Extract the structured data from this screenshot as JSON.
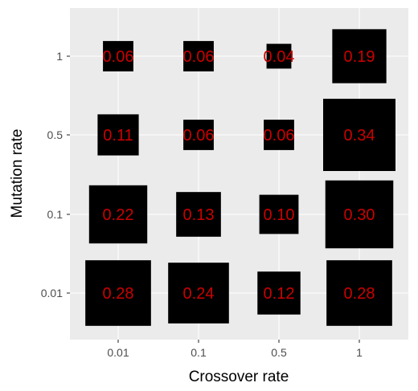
{
  "chart_data": {
    "type": "heatmap",
    "title": "",
    "xlabel": "Crossover rate",
    "ylabel": "Mutation rate",
    "x_categories": [
      "0.01",
      "0.1",
      "0.5",
      "1"
    ],
    "y_categories": [
      "0.01",
      "0.1",
      "0.5",
      "1"
    ],
    "grid": true,
    "legend": "none",
    "cells": [
      {
        "x": "0.01",
        "y": "1",
        "value": 0.06,
        "label": "0.06"
      },
      {
        "x": "0.1",
        "y": "1",
        "value": 0.06,
        "label": "0.06"
      },
      {
        "x": "0.5",
        "y": "1",
        "value": 0.04,
        "label": "0.04"
      },
      {
        "x": "1",
        "y": "1",
        "value": 0.19,
        "label": "0.19"
      },
      {
        "x": "0.01",
        "y": "0.5",
        "value": 0.11,
        "label": "0.11"
      },
      {
        "x": "0.1",
        "y": "0.5",
        "value": 0.06,
        "label": "0.06"
      },
      {
        "x": "0.5",
        "y": "0.5",
        "value": 0.06,
        "label": "0.06"
      },
      {
        "x": "1",
        "y": "0.5",
        "value": 0.34,
        "label": "0.34"
      },
      {
        "x": "0.01",
        "y": "0.1",
        "value": 0.22,
        "label": "0.22"
      },
      {
        "x": "0.1",
        "y": "0.1",
        "value": 0.13,
        "label": "0.13"
      },
      {
        "x": "0.5",
        "y": "0.1",
        "value": 0.1,
        "label": "0.10"
      },
      {
        "x": "1",
        "y": "0.1",
        "value": 0.3,
        "label": "0.30"
      },
      {
        "x": "0.01",
        "y": "0.01",
        "value": 0.28,
        "label": "0.28"
      },
      {
        "x": "0.1",
        "y": "0.01",
        "value": 0.24,
        "label": "0.24"
      },
      {
        "x": "0.5",
        "y": "0.01",
        "value": 0.12,
        "label": "0.12"
      },
      {
        "x": "1",
        "y": "0.01",
        "value": 0.28,
        "label": "0.28"
      }
    ],
    "colors": {
      "panel_background": "#EBEBEB",
      "gridline": "#FFFFFF",
      "square_fill": "#000000",
      "value_label": "#CC0000",
      "tick_text": "#4D4D4D",
      "tick_mark": "#333333"
    }
  }
}
